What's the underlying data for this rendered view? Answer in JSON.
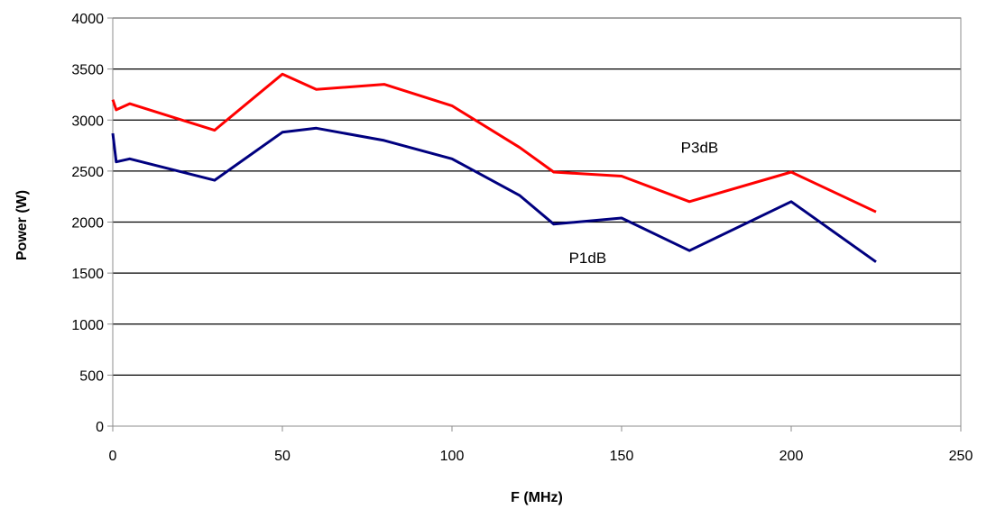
{
  "chart_data": {
    "type": "line",
    "title": "",
    "xlabel": "F (MHz)",
    "ylabel": "Power (W)",
    "xlim": [
      0,
      250
    ],
    "ylim": [
      0,
      4000
    ],
    "x_ticks": [
      0,
      50,
      100,
      150,
      200,
      250
    ],
    "y_ticks": [
      0,
      500,
      1000,
      1500,
      2000,
      2500,
      3000,
      3500,
      4000
    ],
    "grid": "horizontal",
    "series": [
      {
        "name": "P3dB",
        "color": "#ff0000",
        "x": [
          0,
          1,
          5,
          30,
          50,
          60,
          80,
          100,
          120,
          130,
          150,
          170,
          200,
          225
        ],
        "y": [
          3200,
          3100,
          3160,
          2900,
          3450,
          3300,
          3350,
          3140,
          2730,
          2490,
          2450,
          2200,
          2490,
          2100
        ]
      },
      {
        "name": "P1dB",
        "color": "#00007f",
        "x": [
          0,
          1,
          5,
          30,
          50,
          60,
          80,
          100,
          120,
          130,
          150,
          170,
          200,
          225
        ],
        "y": [
          2870,
          2590,
          2620,
          2410,
          2880,
          2920,
          2800,
          2620,
          2260,
          1980,
          2040,
          1720,
          2200,
          1610
        ]
      }
    ]
  }
}
